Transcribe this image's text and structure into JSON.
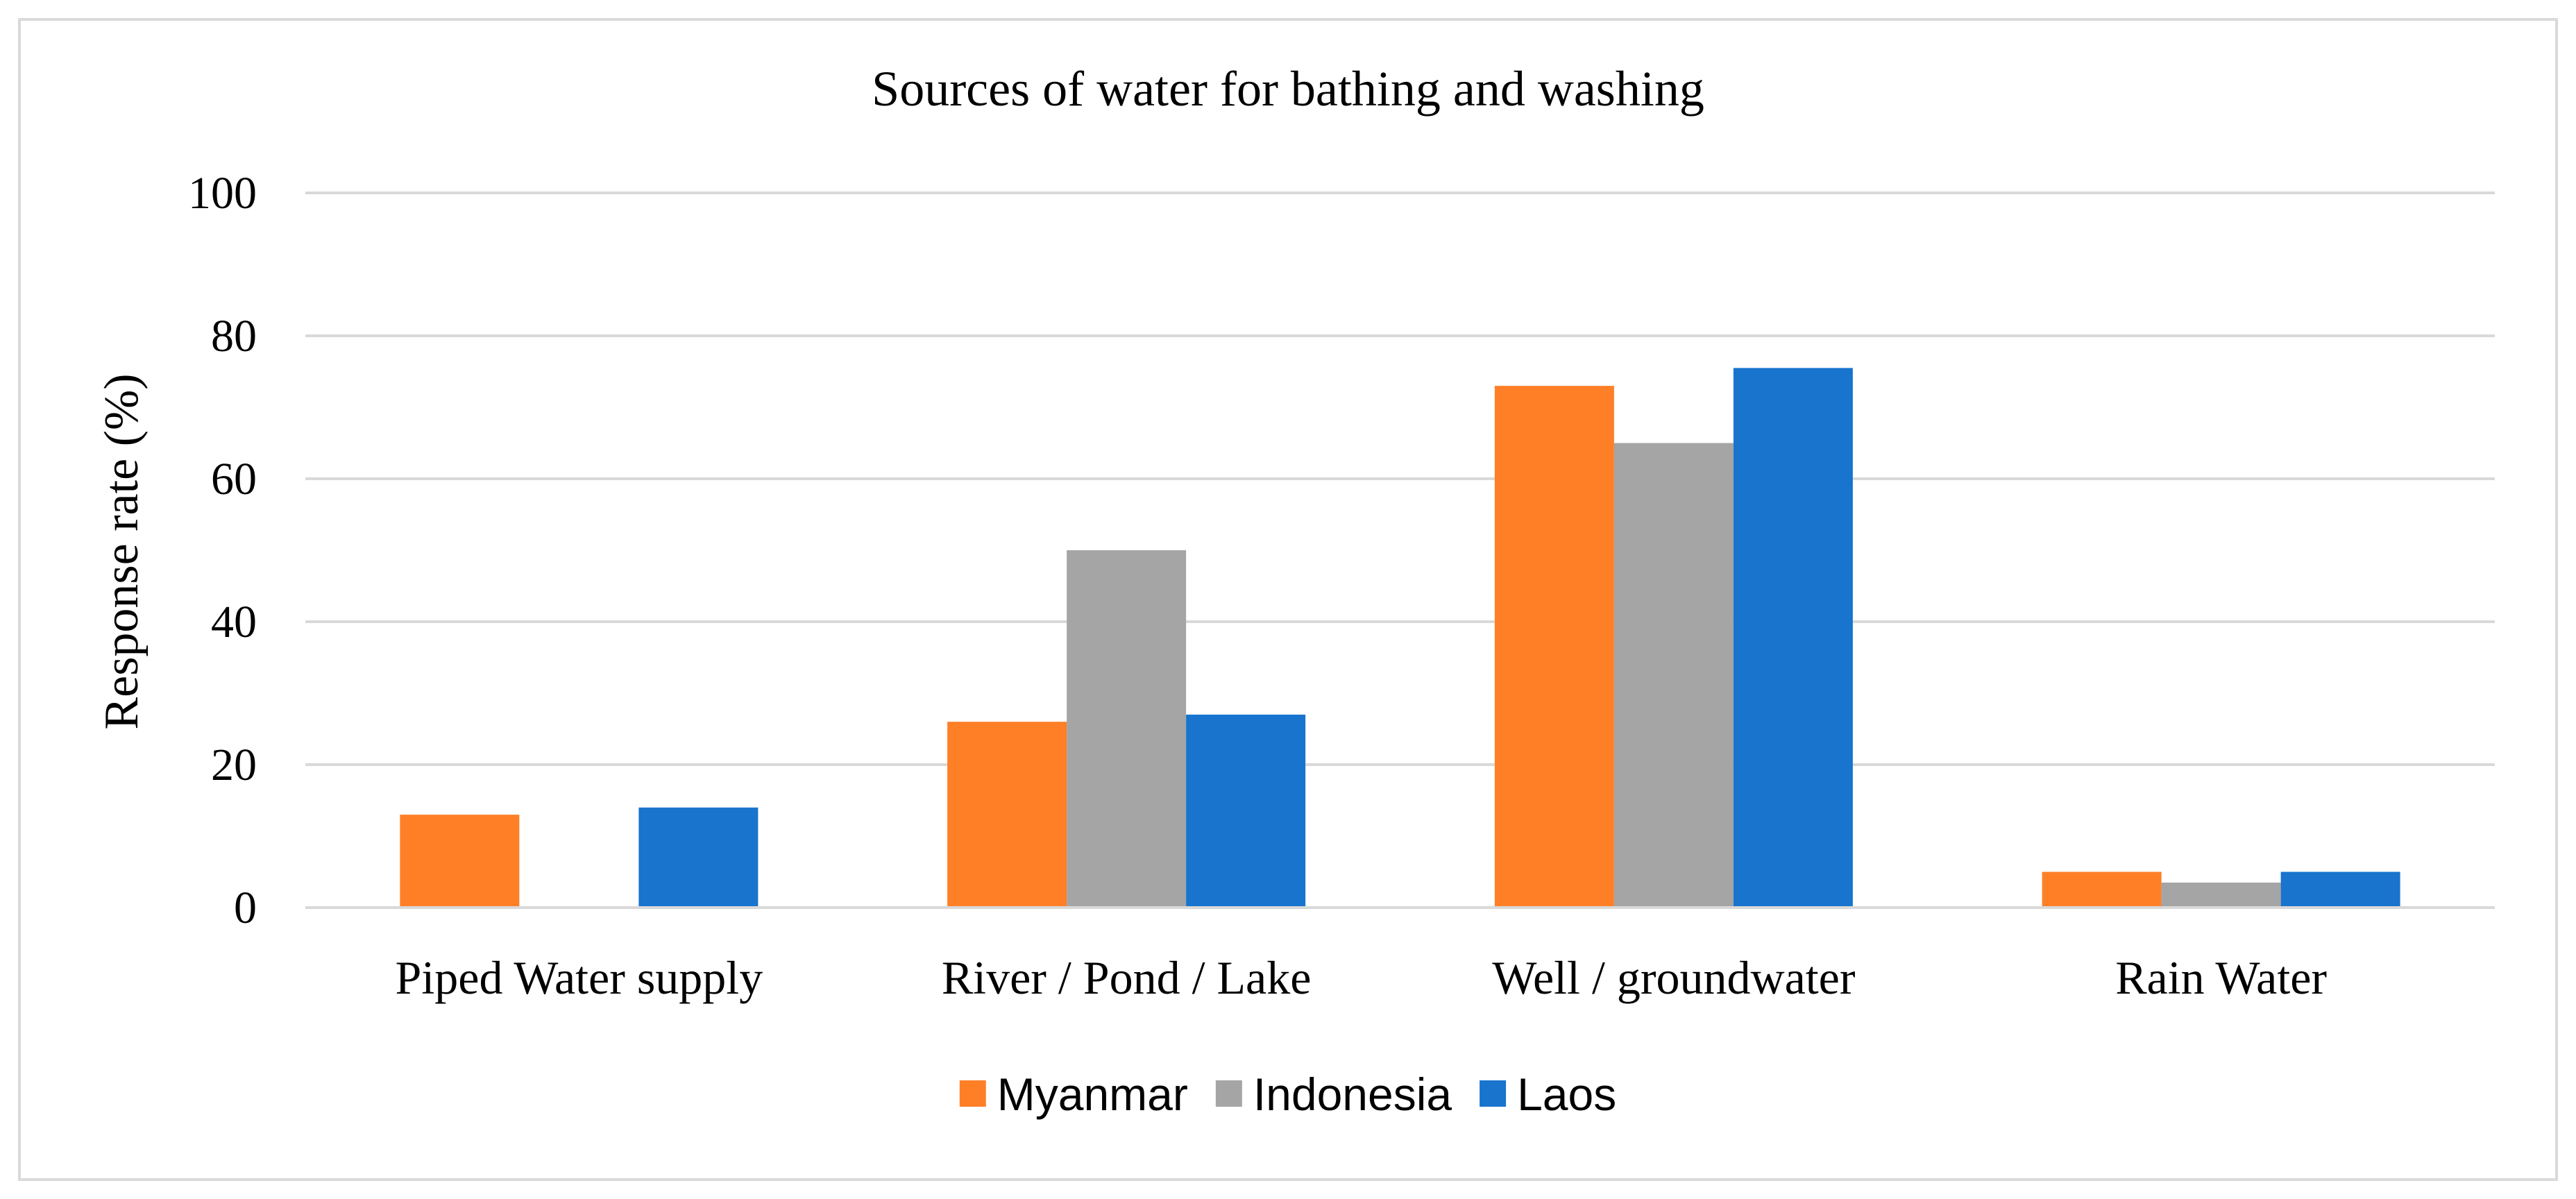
{
  "chart_data": {
    "type": "bar",
    "title": "Sources of water for bathing and washing",
    "xlabel": "",
    "ylabel": "Response rate (%)",
    "ylim": [
      0,
      100
    ],
    "yticks": [
      0,
      20,
      40,
      60,
      80,
      100
    ],
    "grid": true,
    "legend_position": "bottom",
    "categories": [
      "Piped Water supply",
      "River / Pond / Lake",
      "Well / groundwater",
      "Rain Water"
    ],
    "series": [
      {
        "name": "Myanmar",
        "color": "#FF7F27",
        "values": [
          13,
          26,
          73,
          5
        ]
      },
      {
        "name": "Indonesia",
        "color": "#A5A5A5",
        "values": [
          0,
          50,
          65,
          3.5
        ]
      },
      {
        "name": "Laos",
        "color": "#1874CD",
        "values": [
          14,
          27,
          75.5,
          5
        ]
      }
    ]
  }
}
